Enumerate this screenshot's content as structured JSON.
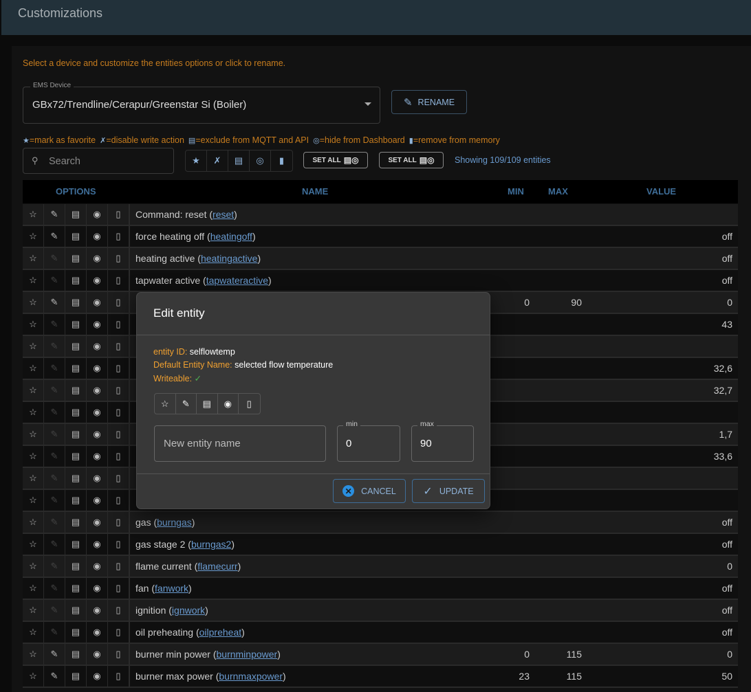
{
  "header": {
    "title": "Customizations"
  },
  "hint": "Select a device and customize the entities options or click to rename.",
  "device_select": {
    "label": "EMS Device",
    "value": "GBx72/Trendline/Cerapur/Greenstar Si (Boiler)"
  },
  "rename_label": "RENAME",
  "legend": [
    "=mark as favorite",
    "=disable write action",
    "=exclude from MQTT and API",
    "=hide from Dashboard",
    "=remove from memory"
  ],
  "search": {
    "placeholder": "Search"
  },
  "set_all_1": "SET ALL",
  "set_all_2": "SET ALL",
  "showing": "Showing 109/109 entities",
  "columns": {
    "options": "OPTIONS",
    "name": "NAME",
    "min": "MIN",
    "max": "MAX",
    "value": "VALUE"
  },
  "rows": [
    {
      "name": "Command: reset (",
      "id": "reset",
      "min": "",
      "max": "",
      "value": "",
      "writeable": true
    },
    {
      "name": "force heating off (",
      "id": "heatingoff",
      "min": "",
      "max": "",
      "value": "off",
      "writeable": true
    },
    {
      "name": "heating active (",
      "id": "heatingactive",
      "min": "",
      "max": "",
      "value": "off",
      "writeable": false
    },
    {
      "name": "tapwater active (",
      "id": "tapwateractive",
      "min": "",
      "max": "",
      "value": "off",
      "writeable": false
    },
    {
      "name": "",
      "id": "",
      "min": "0",
      "max": "90",
      "value": "0",
      "writeable": true
    },
    {
      "name": "",
      "id": "",
      "min": "",
      "max": "",
      "value": "43",
      "writeable": false
    },
    {
      "name": "",
      "id": "",
      "min": "",
      "max": "",
      "value": "",
      "writeable": false
    },
    {
      "name": "",
      "id": "",
      "min": "",
      "max": "",
      "value": "32,6",
      "writeable": false
    },
    {
      "name": "",
      "id": "",
      "min": "",
      "max": "",
      "value": "32,7",
      "writeable": false
    },
    {
      "name": "",
      "id": "",
      "min": "",
      "max": "",
      "value": "",
      "writeable": false
    },
    {
      "name": "",
      "id": "",
      "min": "",
      "max": "",
      "value": "1,7",
      "writeable": false
    },
    {
      "name": "",
      "id": "",
      "min": "",
      "max": "",
      "value": "33,6",
      "writeable": false
    },
    {
      "name": "",
      "id": "",
      "min": "",
      "max": "",
      "value": "",
      "writeable": false
    },
    {
      "name": "",
      "id": "",
      "min": "",
      "max": "",
      "value": "",
      "writeable": false
    },
    {
      "name": "gas (",
      "id": "burngas",
      "min": "",
      "max": "",
      "value": "off",
      "writeable": false
    },
    {
      "name": "gas stage 2 (",
      "id": "burngas2",
      "min": "",
      "max": "",
      "value": "off",
      "writeable": false
    },
    {
      "name": "flame current (",
      "id": "flamecurr",
      "min": "",
      "max": "",
      "value": "0",
      "writeable": false
    },
    {
      "name": "fan (",
      "id": "fanwork",
      "min": "",
      "max": "",
      "value": "off",
      "writeable": false
    },
    {
      "name": "ignition (",
      "id": "ignwork",
      "min": "",
      "max": "",
      "value": "off",
      "writeable": false
    },
    {
      "name": "oil preheating (",
      "id": "oilpreheat",
      "min": "",
      "max": "",
      "value": "off",
      "writeable": false
    },
    {
      "name": "burner min power (",
      "id": "burnminpower",
      "min": "0",
      "max": "115",
      "value": "0",
      "writeable": true
    },
    {
      "name": "burner max power (",
      "id": "burnmaxpower",
      "min": "23",
      "max": "115",
      "value": "50",
      "writeable": true
    }
  ],
  "dialog": {
    "title": "Edit entity",
    "entity_id_label": "entity ID: ",
    "entity_id": "selflowtemp",
    "default_name_label": "Default Entity Name: ",
    "default_name": "selected flow temperature",
    "writeable_label": "Writeable: ",
    "writeable_mark": "✓",
    "name_placeholder": "New entity name",
    "min_label": "min",
    "min_value": "0",
    "max_label": "max",
    "max_value": "90",
    "cancel": "CANCEL",
    "update": "UPDATE"
  },
  "colors": {
    "accent": "#8fb3d9",
    "hint": "#c87d1e",
    "header": "#22313a",
    "link": "#6a9bd0"
  }
}
